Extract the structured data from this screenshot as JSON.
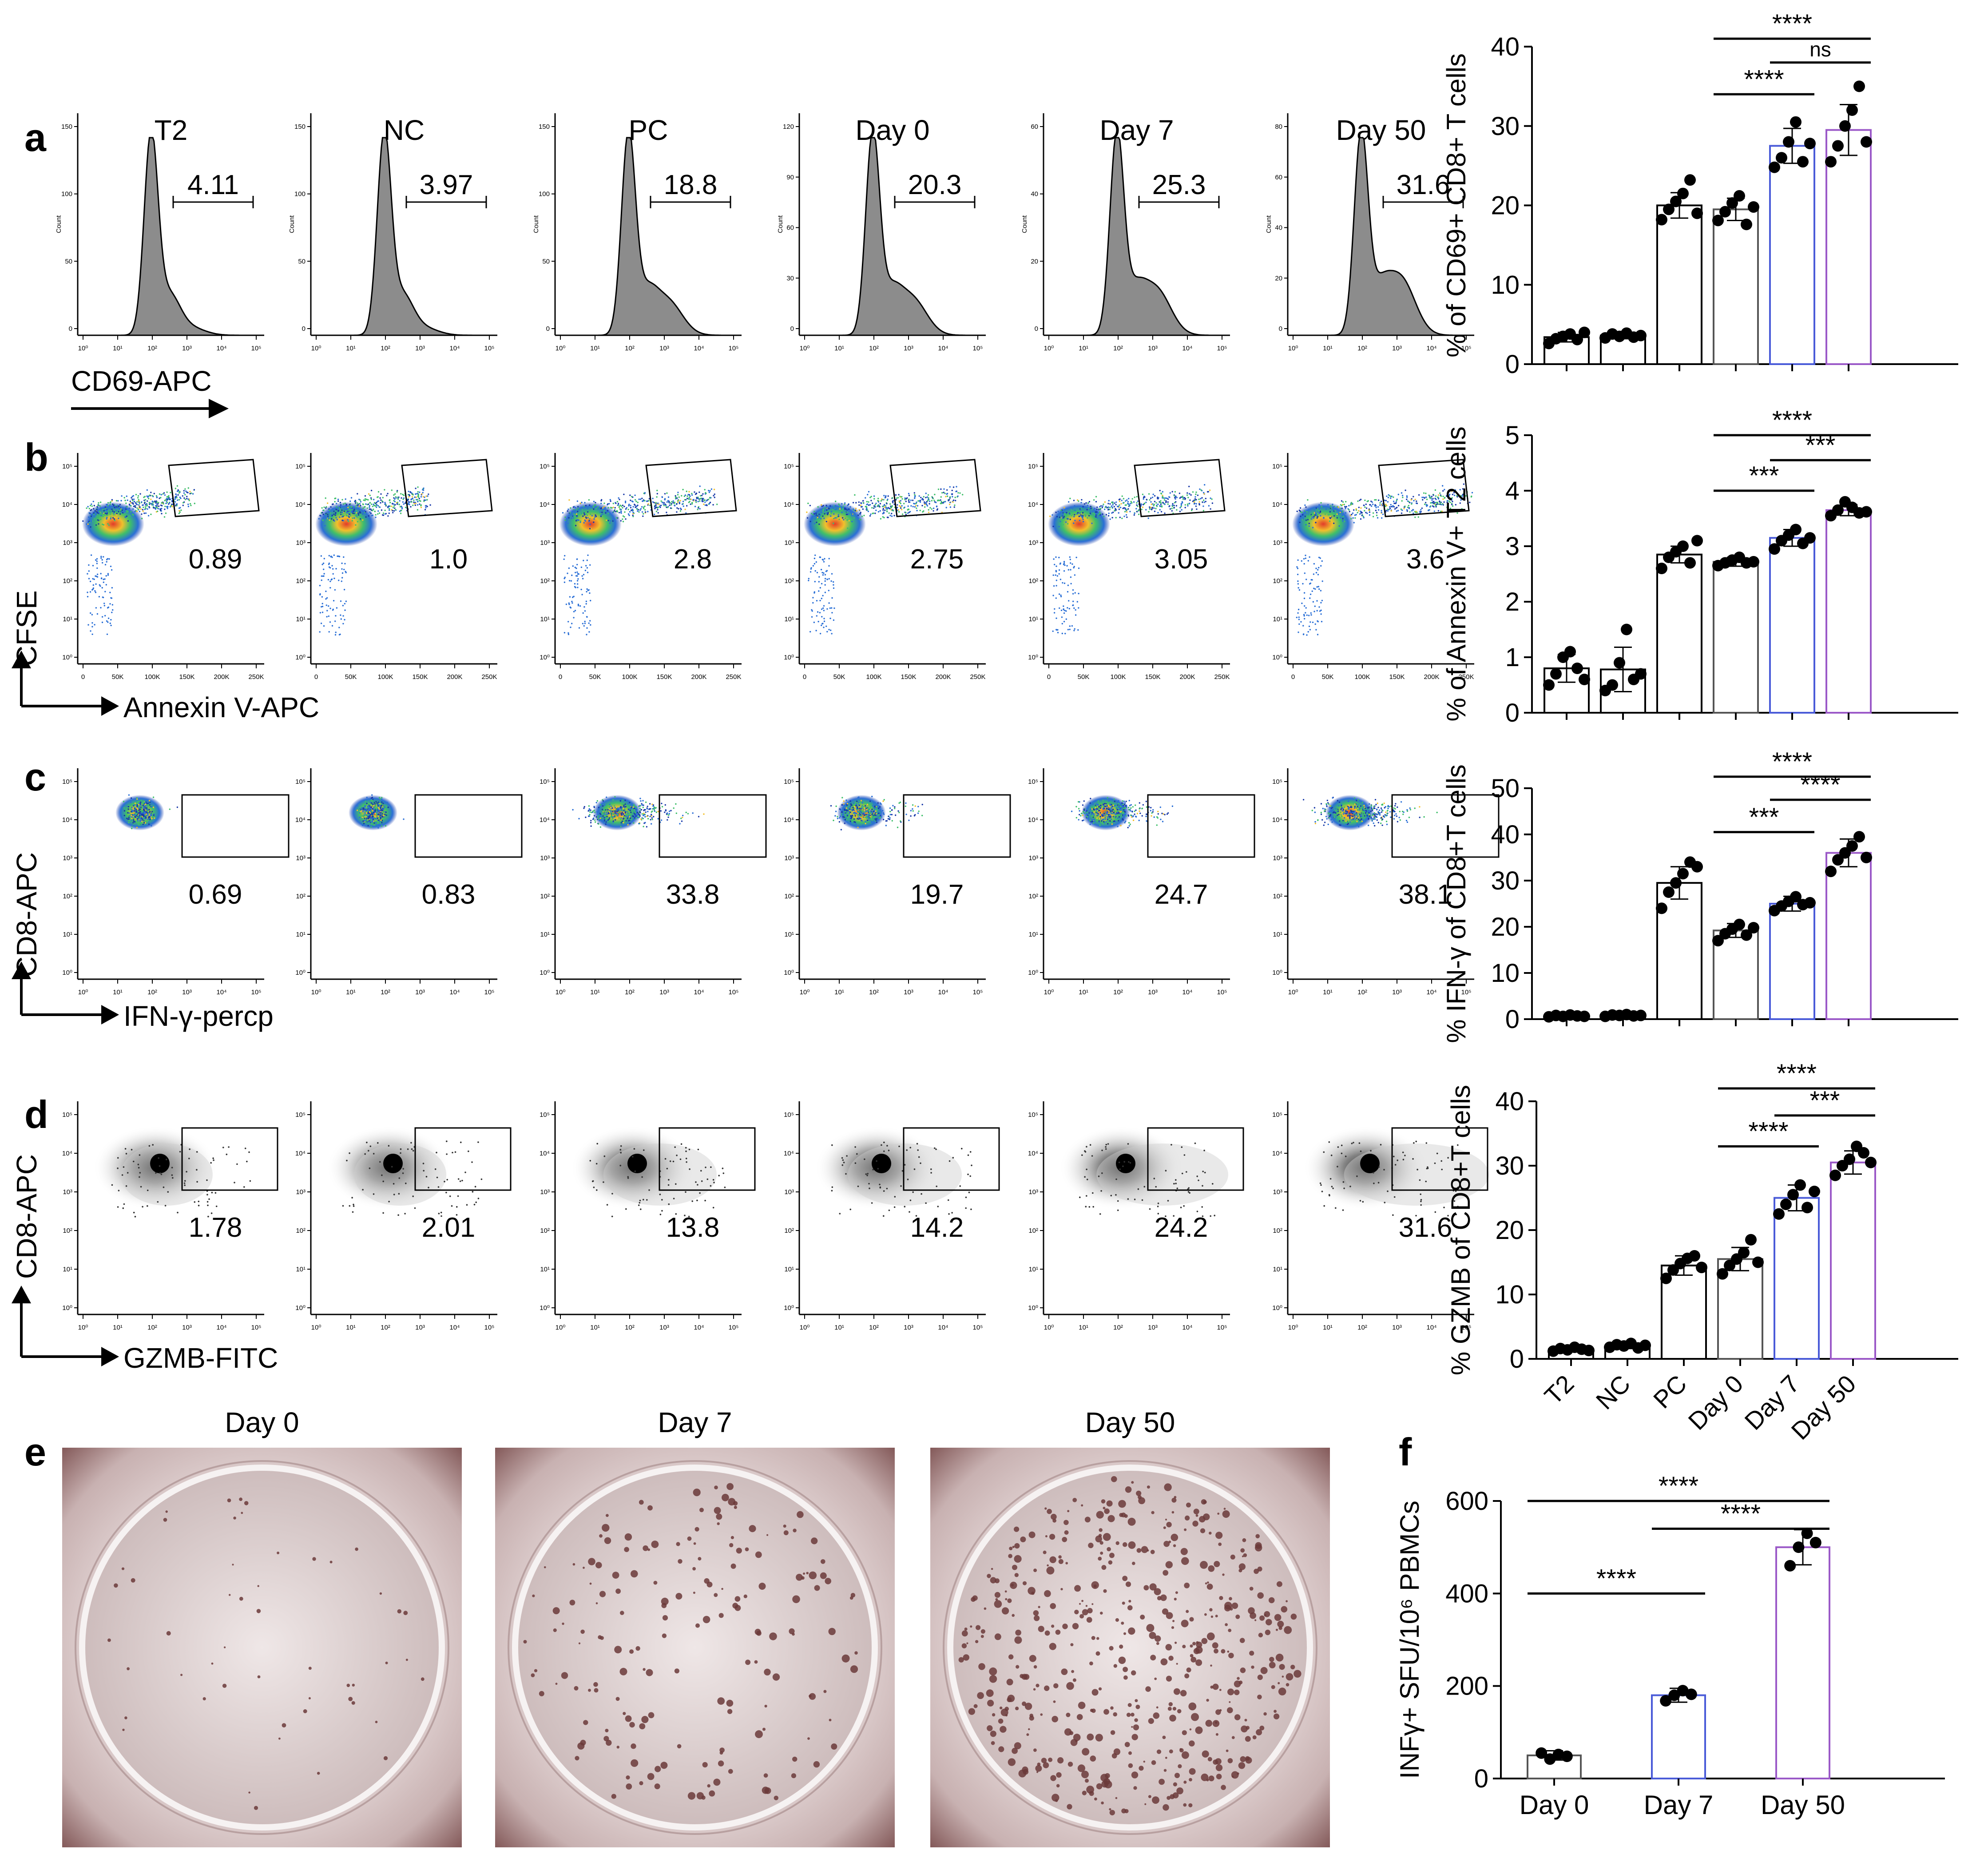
{
  "panels": {
    "a": "a",
    "b": "b",
    "c": "c",
    "d": "d",
    "e": "e",
    "f": "f"
  },
  "groups": [
    "T2",
    "NC",
    "PC",
    "Day 0",
    "Day 7",
    "Day 50"
  ],
  "flow": {
    "a": {
      "xlabel": "CD69-APC",
      "ylabel_count": "Count",
      "values": [
        "4.11",
        "3.97",
        "18.8",
        "20.3",
        "25.3",
        "31.6"
      ],
      "ymax_ticks": [
        [
          "0",
          "50",
          "100",
          "150"
        ],
        [
          "0",
          "50",
          "100",
          "150"
        ],
        [
          "0",
          "50",
          "100",
          "150"
        ],
        [
          "0",
          "30",
          "60",
          "90",
          "120"
        ],
        [
          "0",
          "20",
          "40",
          "60"
        ],
        [
          "0",
          "20",
          "40",
          "60",
          "80"
        ]
      ]
    },
    "b": {
      "xlabel": "Annexin V-APC",
      "ylabel": "CFSE",
      "values": [
        "0.89",
        "1.0",
        "2.8",
        "2.75",
        "3.05",
        "3.6"
      ]
    },
    "c": {
      "xlabel": "IFN-γ-percp",
      "ylabel": "CD8-APC",
      "values": [
        "0.69",
        "0.83",
        "33.8",
        "19.7",
        "24.7",
        "38.1"
      ]
    },
    "d": {
      "xlabel": "GZMB-FITC",
      "ylabel": "CD8-APC",
      "values": [
        "1.78",
        "2.01",
        "13.8",
        "14.2",
        "24.2",
        "31.6"
      ]
    }
  },
  "log_ticks": [
    "10⁰",
    "10¹",
    "10²",
    "10³",
    "10⁴",
    "10⁵"
  ],
  "lin_ticks": [
    "0",
    "50K",
    "100K",
    "150K",
    "200K",
    "250K"
  ],
  "elispot": {
    "titles": [
      "Day 0",
      "Day 7",
      "Day 50"
    ]
  },
  "colors": {
    "day7": "#4a5bd8",
    "day50": "#9b59c8",
    "bar": "#000000",
    "well": "#6b3a3a"
  },
  "chart_data": [
    {
      "type": "bar",
      "panel": "a",
      "ylabel": "% of CD69+ CD8+ T cells",
      "ylim": [
        0,
        40
      ],
      "yticks": [
        0,
        10,
        20,
        30,
        40
      ],
      "categories": [
        "T2",
        "NC",
        "PC",
        "Day 0",
        "Day 7",
        "Day 50"
      ],
      "values": [
        3.4,
        3.6,
        20,
        19.5,
        27.5,
        29.5
      ],
      "err": [
        0.6,
        0.4,
        1.6,
        1.4,
        2.2,
        3.2
      ],
      "points": [
        [
          2.6,
          3.2,
          3.5,
          3.8,
          3.1,
          4.0
        ],
        [
          3.3,
          3.8,
          3.5,
          3.9,
          3.4,
          3.6
        ],
        [
          18.2,
          19.5,
          20.5,
          21.5,
          23.2,
          19.0
        ],
        [
          18.1,
          19.2,
          20.3,
          21.2,
          17.6,
          19.8
        ],
        [
          24.8,
          26.0,
          28.0,
          30.5,
          25.5,
          27.8
        ],
        [
          25.5,
          27.5,
          30.0,
          32.0,
          35.0,
          28.0
        ]
      ],
      "sig": [
        {
          "from": 3,
          "to": 5,
          "label": "****",
          "y": 41
        },
        {
          "from": 4,
          "to": 5,
          "label": "ns",
          "y": 38
        },
        {
          "from": 3,
          "to": 4,
          "label": "****",
          "y": 34
        }
      ]
    },
    {
      "type": "bar",
      "panel": "b",
      "ylabel": "% of Annexin V+ T2 cells",
      "ylim": [
        0,
        5
      ],
      "yticks": [
        0,
        1,
        2,
        3,
        4,
        5
      ],
      "categories": [
        "T2",
        "NC",
        "PC",
        "Day 0",
        "Day 7",
        "Day 50"
      ],
      "values": [
        0.8,
        0.78,
        2.85,
        2.72,
        3.15,
        3.65
      ],
      "err": [
        0.25,
        0.4,
        0.15,
        0.08,
        0.15,
        0.1
      ],
      "points": [
        [
          0.5,
          0.7,
          1.0,
          1.1,
          0.8,
          0.6
        ],
        [
          0.4,
          0.5,
          0.9,
          1.5,
          0.6,
          0.7
        ],
        [
          2.6,
          2.8,
          2.9,
          3.0,
          2.7,
          3.1
        ],
        [
          2.65,
          2.7,
          2.75,
          2.8,
          2.7,
          2.72
        ],
        [
          2.95,
          3.1,
          3.2,
          3.3,
          3.05,
          3.15
        ],
        [
          3.55,
          3.65,
          3.8,
          3.7,
          3.6,
          3.62
        ]
      ],
      "sig": [
        {
          "from": 3,
          "to": 5,
          "label": "****",
          "y": 5.0
        },
        {
          "from": 4,
          "to": 5,
          "label": "***",
          "y": 4.55
        },
        {
          "from": 3,
          "to": 4,
          "label": "***",
          "y": 4.0
        }
      ]
    },
    {
      "type": "bar",
      "panel": "c",
      "ylabel": "% IFN-γ of CD8+T cells",
      "ylim": [
        0,
        50
      ],
      "yticks": [
        0,
        10,
        20,
        30,
        40,
        50
      ],
      "categories": [
        "T2",
        "NC",
        "PC",
        "Day 0",
        "Day 7",
        "Day 50"
      ],
      "values": [
        0.7,
        0.8,
        29.5,
        19.2,
        25.0,
        36.0
      ],
      "err": [
        0.2,
        0.3,
        3.5,
        1.5,
        1.6,
        3.0
      ],
      "points": [
        [
          0.5,
          0.8,
          0.6,
          0.9,
          0.7,
          0.6
        ],
        [
          0.6,
          0.9,
          0.8,
          1.0,
          0.7,
          0.8
        ],
        [
          24,
          27.5,
          29.5,
          31.5,
          34,
          33
        ],
        [
          17,
          18.5,
          19.5,
          20.5,
          18.2,
          19.8
        ],
        [
          23.5,
          24.5,
          25.5,
          26.5,
          24.8,
          25.2
        ],
        [
          32,
          34.5,
          36,
          37.5,
          39.5,
          35
        ]
      ],
      "sig": [
        {
          "from": 3,
          "to": 5,
          "label": "****",
          "y": 52.5
        },
        {
          "from": 4,
          "to": 5,
          "label": "****",
          "y": 47.5
        },
        {
          "from": 3,
          "to": 4,
          "label": "***",
          "y": 40.5
        }
      ]
    },
    {
      "type": "bar",
      "panel": "d",
      "ylabel": "% GZMB of CD8+T cells",
      "ylim": [
        0,
        40
      ],
      "yticks": [
        0,
        10,
        20,
        30,
        40
      ],
      "categories": [
        "T2",
        "NC",
        "PC",
        "Day 0",
        "Day 7",
        "Day 50"
      ],
      "values": [
        1.5,
        2.0,
        14.5,
        15.5,
        25.0,
        30.5
      ],
      "err": [
        0.3,
        0.4,
        1.5,
        1.8,
        2.0,
        1.8
      ],
      "points": [
        [
          1.2,
          1.6,
          1.4,
          1.8,
          1.5,
          1.3
        ],
        [
          1.8,
          2.2,
          2.0,
          2.4,
          1.7,
          2.1
        ],
        [
          12.5,
          13.8,
          14.8,
          15.6,
          16.0,
          14.2
        ],
        [
          13.2,
          14.5,
          15.5,
          16.5,
          18.5,
          15.0
        ],
        [
          22.5,
          24,
          25.5,
          27,
          23.5,
          26
        ],
        [
          28.5,
          30,
          31,
          33,
          32,
          30.5
        ]
      ],
      "sig": [
        {
          "from": 3,
          "to": 5,
          "label": "****",
          "y": 42
        },
        {
          "from": 4,
          "to": 5,
          "label": "***",
          "y": 37.8
        },
        {
          "from": 3,
          "to": 4,
          "label": "****",
          "y": 33
        }
      ]
    },
    {
      "type": "bar",
      "panel": "f",
      "ylabel": "INFγ+ SFU/10⁶ PBMCs",
      "ylim": [
        0,
        600
      ],
      "yticks": [
        0,
        200,
        400,
        600
      ],
      "categories": [
        "Day 0",
        "Day 7",
        "Day 50"
      ],
      "values": [
        50,
        180,
        500
      ],
      "err": [
        10,
        15,
        38
      ],
      "points": [
        [
          55,
          42,
          52,
          48
        ],
        [
          168,
          180,
          190,
          182
        ],
        [
          460,
          500,
          530,
          510
        ]
      ],
      "sig": [
        {
          "from": 0,
          "to": 2,
          "label": "****",
          "y": 600
        },
        {
          "from": 1,
          "to": 2,
          "label": "****",
          "y": 540
        },
        {
          "from": 0,
          "to": 1,
          "label": "****",
          "y": 400
        }
      ]
    }
  ]
}
